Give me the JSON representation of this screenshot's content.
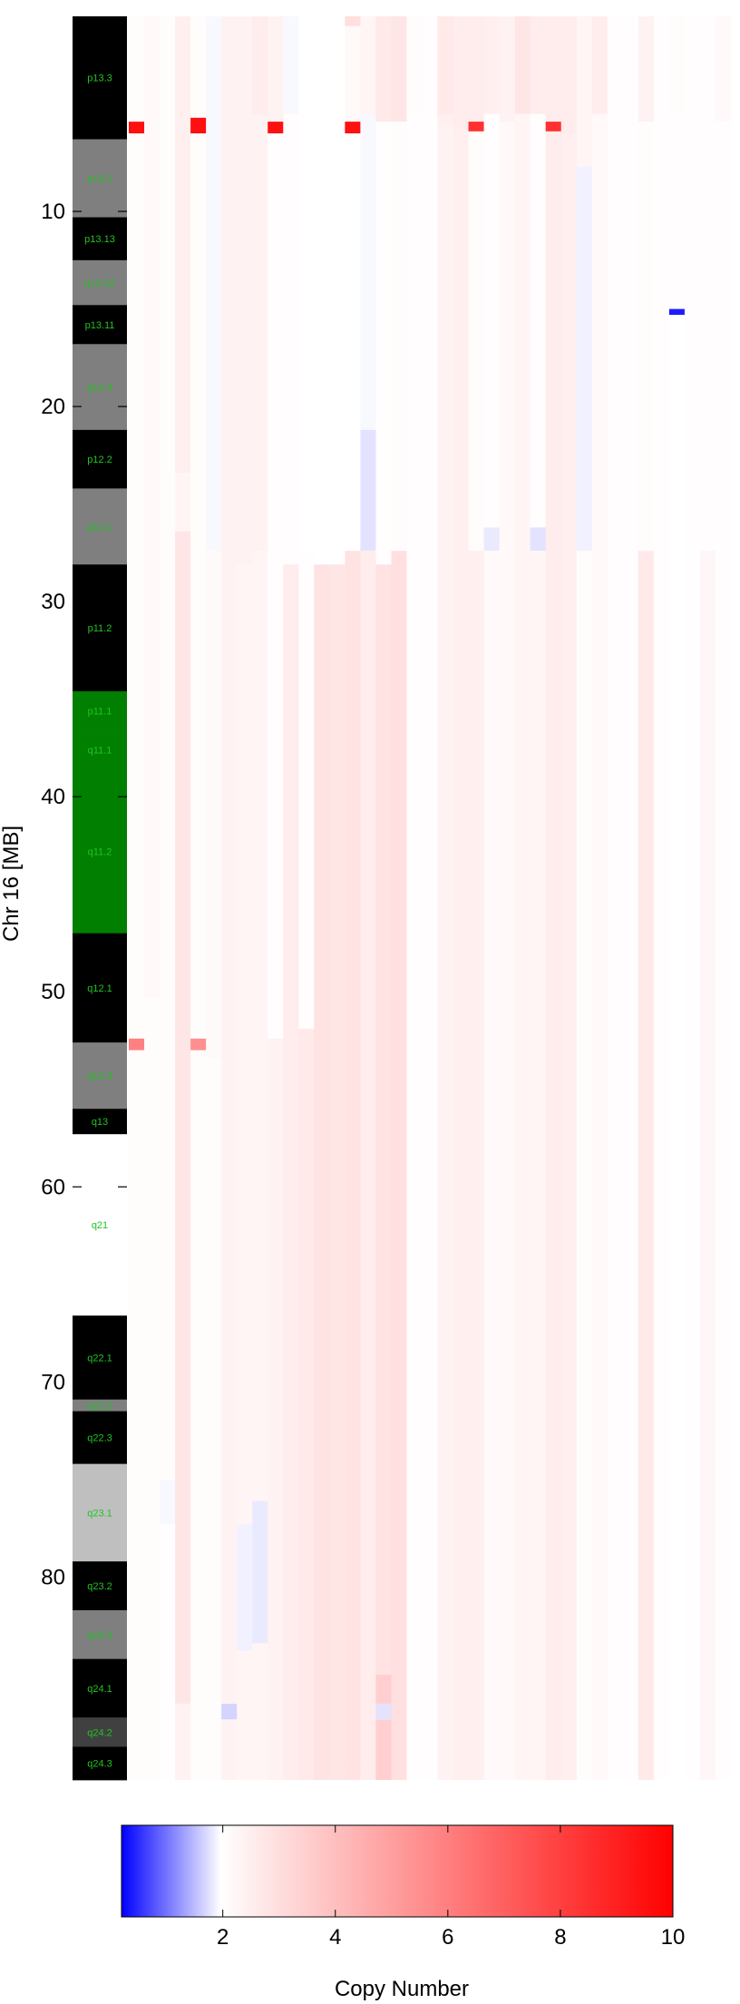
{
  "chart_data": {
    "type": "heatmap",
    "ylabel": "Chr 16 [MB]",
    "ylim": [
      0,
      90.4
    ],
    "y_ticks": [
      10,
      20,
      30,
      40,
      50,
      60,
      70,
      80
    ],
    "y_tick_labels": [
      "10",
      "20",
      "30",
      "40",
      "50",
      "60",
      "70",
      "80"
    ],
    "colorbar": {
      "label": "Copy Number",
      "range": [
        0.2,
        10
      ],
      "ticks": [
        2,
        4,
        6,
        8,
        10
      ],
      "tick_labels": [
        "2",
        "4",
        "6",
        "8",
        "10"
      ],
      "colors": {
        "low": "#0000ff",
        "neutral": "#ffffff",
        "high": "#ff0000"
      }
    },
    "ideogram": [
      {
        "name": "p13.3",
        "start": 0.0,
        "end": 6.3,
        "color": "#000000"
      },
      {
        "name": "p13.2",
        "start": 6.3,
        "end": 10.3,
        "color": "#7f7f7f"
      },
      {
        "name": "p13.13",
        "start": 10.3,
        "end": 12.5,
        "color": "#000000"
      },
      {
        "name": "p13.12",
        "start": 12.5,
        "end": 14.8,
        "color": "#7f7f7f"
      },
      {
        "name": "p13.11",
        "start": 14.8,
        "end": 16.8,
        "color": "#000000"
      },
      {
        "name": "p12.3",
        "start": 16.8,
        "end": 21.2,
        "color": "#7f7f7f"
      },
      {
        "name": "p12.2",
        "start": 21.2,
        "end": 24.2,
        "color": "#000000"
      },
      {
        "name": "p12.1",
        "start": 24.2,
        "end": 28.1,
        "color": "#7f7f7f"
      },
      {
        "name": "p11.2",
        "start": 28.1,
        "end": 34.6,
        "color": "#000000"
      },
      {
        "name": "p11.1",
        "start": 34.6,
        "end": 36.6,
        "color": "#007f00"
      },
      {
        "name": "q11.1",
        "start": 36.6,
        "end": 38.6,
        "color": "#007f00"
      },
      {
        "name": "q11.2",
        "start": 38.6,
        "end": 47.0,
        "color": "#007f00"
      },
      {
        "name": "q12.1",
        "start": 47.0,
        "end": 52.6,
        "color": "#000000"
      },
      {
        "name": "q12.2",
        "start": 52.6,
        "end": 56.0,
        "color": "#7f7f7f"
      },
      {
        "name": "q13",
        "start": 56.0,
        "end": 57.3,
        "color": "#000000"
      },
      {
        "name": "q21",
        "start": 57.3,
        "end": 66.6,
        "color": "#ffffff"
      },
      {
        "name": "q22.1",
        "start": 66.6,
        "end": 70.9,
        "color": "#000000"
      },
      {
        "name": "q22.2",
        "start": 70.9,
        "end": 71.5,
        "color": "#7f7f7f"
      },
      {
        "name": "q22.3",
        "start": 71.5,
        "end": 74.2,
        "color": "#000000"
      },
      {
        "name": "q23.1",
        "start": 74.2,
        "end": 79.2,
        "color": "#bfbfbf"
      },
      {
        "name": "q23.2",
        "start": 79.2,
        "end": 81.7,
        "color": "#000000"
      },
      {
        "name": "q23.3",
        "start": 81.7,
        "end": 84.2,
        "color": "#7f7f7f"
      },
      {
        "name": "q24.1",
        "start": 84.2,
        "end": 87.2,
        "color": "#000000"
      },
      {
        "name": "q24.2",
        "start": 87.2,
        "end": 88.7,
        "color": "#404040"
      },
      {
        "name": "q24.3",
        "start": 88.7,
        "end": 90.4,
        "color": "#000000"
      }
    ],
    "samples": [
      {
        "segments": [
          [
            0,
            5.4,
            2.1
          ],
          [
            5.4,
            6.0,
            9.5
          ],
          [
            6.0,
            52.4,
            2.1
          ],
          [
            52.4,
            53.0,
            6.0
          ],
          [
            53.0,
            90.4,
            2.1
          ]
        ]
      },
      {
        "segments": [
          [
            0,
            50.3,
            2.2
          ],
          [
            50.3,
            90.4,
            2.1
          ]
        ]
      },
      {
        "segments": [
          [
            0,
            5.0,
            2.1
          ],
          [
            5.0,
            75.0,
            2.1
          ],
          [
            75.0,
            77.3,
            1.95
          ],
          [
            77.3,
            90.4,
            2.05
          ]
        ]
      },
      {
        "segments": [
          [
            0,
            23.4,
            2.5
          ],
          [
            23.4,
            26.4,
            2.3
          ],
          [
            26.4,
            86.5,
            2.8
          ],
          [
            86.5,
            90.4,
            2.4
          ]
        ]
      },
      {
        "segments": [
          [
            0,
            5.2,
            2.1
          ],
          [
            5.2,
            6.0,
            9.5
          ],
          [
            6.0,
            52.4,
            2.1
          ],
          [
            52.4,
            53.0,
            5.5
          ],
          [
            53.0,
            90.4,
            2.1
          ]
        ]
      },
      {
        "segments": [
          [
            0,
            27.4,
            1.95
          ],
          [
            27.4,
            53.4,
            2.15
          ],
          [
            53.4,
            90.4,
            2.1
          ]
        ]
      },
      {
        "segments": [
          [
            0,
            2.6,
            2.4
          ],
          [
            2.6,
            27.8,
            2.4
          ],
          [
            27.8,
            86.5,
            2.4
          ],
          [
            86.5,
            87.3,
            1.7
          ],
          [
            87.3,
            90.4,
            2.4
          ]
        ]
      },
      {
        "segments": [
          [
            0,
            5.4,
            2.4
          ],
          [
            5.4,
            28.1,
            2.4
          ],
          [
            28.1,
            77.3,
            2.3
          ],
          [
            77.3,
            83.8,
            1.9
          ],
          [
            83.8,
            90.4,
            2.3
          ]
        ]
      },
      {
        "segments": [
          [
            0,
            5.0,
            2.6
          ],
          [
            5.0,
            27.4,
            2.4
          ],
          [
            27.4,
            76.1,
            2.3
          ],
          [
            76.1,
            83.4,
            1.85
          ],
          [
            83.4,
            90.4,
            2.3
          ]
        ]
      },
      {
        "segments": [
          [
            0,
            5.4,
            2.4
          ],
          [
            5.4,
            6.0,
            9.5
          ],
          [
            6.0,
            52.4,
            2.05
          ],
          [
            52.4,
            90.4,
            2.4
          ]
        ]
      },
      {
        "segments": [
          [
            0,
            5.0,
            1.95
          ],
          [
            5.0,
            28.1,
            2.05
          ],
          [
            28.1,
            90.4,
            2.6
          ]
        ]
      },
      {
        "segments": [
          [
            0,
            27.4,
            2.0
          ],
          [
            27.4,
            51.9,
            2.05
          ],
          [
            51.9,
            90.4,
            2.7
          ]
        ]
      },
      {
        "segments": [
          [
            0,
            28.1,
            2.0
          ],
          [
            28.1,
            90.4,
            2.9
          ]
        ]
      },
      {
        "segments": [
          [
            0,
            28.1,
            2.0
          ],
          [
            28.1,
            40.5,
            2.8
          ],
          [
            40.5,
            90.4,
            2.8
          ]
        ]
      },
      {
        "segments": [
          [
            0,
            0.5,
            3.0
          ],
          [
            0.5,
            5.4,
            2.2
          ],
          [
            5.4,
            6.0,
            9.5
          ],
          [
            6.0,
            27.4,
            2.0
          ],
          [
            27.4,
            89.6,
            2.9
          ],
          [
            89.6,
            90.4,
            2.9
          ]
        ]
      },
      {
        "segments": [
          [
            0,
            5.0,
            2.3
          ],
          [
            5.0,
            21.2,
            1.95
          ],
          [
            21.2,
            27.4,
            1.8
          ],
          [
            27.4,
            90.4,
            2.6
          ]
        ]
      },
      {
        "segments": [
          [
            0,
            5.4,
            2.7
          ],
          [
            5.4,
            28.1,
            2.05
          ],
          [
            28.1,
            85.0,
            2.9
          ],
          [
            85.0,
            86.5,
            3.5
          ],
          [
            86.5,
            87.3,
            1.8
          ],
          [
            87.3,
            90.4,
            3.5
          ]
        ]
      },
      {
        "segments": [
          [
            0,
            5.4,
            2.8
          ],
          [
            5.4,
            27.4,
            2.1
          ],
          [
            27.4,
            90.4,
            3.0
          ]
        ]
      },
      {
        "segments": [
          [
            0,
            5.0,
            2.1
          ],
          [
            5.0,
            90.4,
            2.05
          ]
        ]
      },
      {
        "segments": [
          [
            0,
            90.4,
            2.05
          ]
        ]
      },
      {
        "segments": [
          [
            0,
            5.0,
            2.7
          ],
          [
            5.0,
            5.6,
            2.5
          ],
          [
            5.6,
            90.4,
            2.4
          ]
        ]
      },
      {
        "segments": [
          [
            0,
            5.8,
            2.6
          ],
          [
            5.8,
            90.4,
            2.5
          ]
        ]
      },
      {
        "segments": [
          [
            0,
            5.4,
            2.6
          ],
          [
            5.4,
            5.9,
            8.5
          ],
          [
            5.9,
            27.4,
            2.1
          ],
          [
            27.4,
            90.4,
            2.5
          ]
        ]
      },
      {
        "segments": [
          [
            0,
            5.0,
            2.5
          ],
          [
            5.0,
            26.2,
            2.05
          ],
          [
            26.2,
            27.4,
            1.85
          ],
          [
            27.4,
            90.4,
            2.2
          ]
        ]
      },
      {
        "segments": [
          [
            0,
            5.4,
            2.4
          ],
          [
            5.4,
            90.4,
            2.2
          ]
        ]
      },
      {
        "segments": [
          [
            0,
            5.0,
            2.8
          ],
          [
            5.0,
            90.4,
            2.3
          ]
        ]
      },
      {
        "segments": [
          [
            0,
            5.0,
            2.6
          ],
          [
            5.0,
            26.2,
            2.05
          ],
          [
            26.2,
            27.4,
            1.8
          ],
          [
            27.4,
            90.4,
            2.3
          ]
        ]
      },
      {
        "segments": [
          [
            0,
            5.4,
            2.6
          ],
          [
            5.4,
            5.9,
            8.5
          ],
          [
            5.9,
            90.4,
            2.6
          ]
        ]
      },
      {
        "segments": [
          [
            0,
            6.0,
            2.6
          ],
          [
            6.0,
            90.4,
            2.5
          ]
        ]
      },
      {
        "segments": [
          [
            0,
            7.7,
            2.3
          ],
          [
            7.7,
            27.4,
            1.9
          ],
          [
            27.4,
            90.4,
            2.1
          ]
        ]
      },
      {
        "segments": [
          [
            0,
            5.0,
            2.6
          ],
          [
            5.0,
            90.4,
            2.2
          ]
        ]
      },
      {
        "segments": [
          [
            0,
            90.4,
            2.05
          ]
        ]
      },
      {
        "segments": [
          [
            0,
            5.0,
            2.05
          ],
          [
            5.0,
            90.4,
            2.05
          ]
        ]
      },
      {
        "segments": [
          [
            0,
            5.4,
            2.4
          ],
          [
            5.4,
            27.4,
            2.1
          ],
          [
            27.4,
            90.4,
            2.7
          ]
        ]
      },
      {
        "segments": [
          [
            0,
            90.4,
            2.05
          ]
        ]
      },
      {
        "segments": [
          [
            0,
            5.0,
            2.1
          ],
          [
            5.0,
            15.0,
            2.05
          ],
          [
            15.0,
            15.3,
            0.4
          ],
          [
            15.3,
            90.4,
            2.0
          ]
        ]
      },
      {
        "segments": [
          [
            0,
            90.4,
            2.05
          ]
        ]
      },
      {
        "segments": [
          [
            0,
            27.4,
            2.05
          ],
          [
            27.4,
            90.4,
            2.25
          ]
        ]
      },
      {
        "segments": [
          [
            0,
            5.4,
            2.2
          ],
          [
            5.4,
            90.4,
            2.05
          ]
        ]
      }
    ]
  }
}
